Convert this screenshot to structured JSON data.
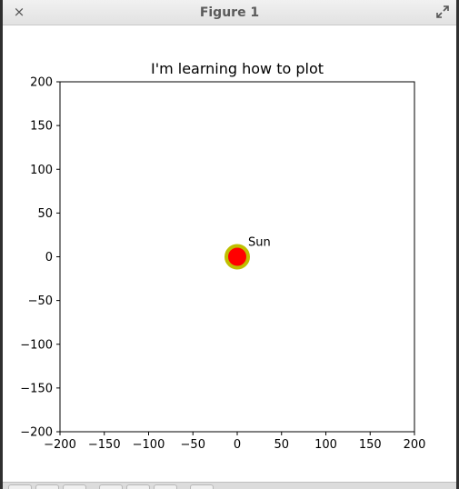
{
  "window": {
    "title": "Figure 1",
    "close_glyph": "×"
  },
  "toolbar": {
    "buttons": [
      "home-icon",
      "back-icon",
      "forward-icon",
      "pan-icon",
      "zoom-icon",
      "configure-icon",
      "save-icon"
    ]
  },
  "chart_data": {
    "type": "scatter",
    "title": "I'm learning how to plot",
    "xlabel": "",
    "ylabel": "",
    "xlim": [
      -200,
      200
    ],
    "ylim": [
      -200,
      200
    ],
    "xticks": [
      -200,
      -150,
      -100,
      -50,
      0,
      50,
      100,
      150,
      200
    ],
    "yticks": [
      -200,
      -150,
      -100,
      -50,
      0,
      50,
      100,
      150,
      200
    ],
    "xtick_labels": [
      "−200",
      "−150",
      "−100",
      "−50",
      "0",
      "50",
      "100",
      "150",
      "200"
    ],
    "ytick_labels": [
      "−200",
      "−150",
      "−100",
      "−50",
      "0",
      "50",
      "100",
      "150",
      "200"
    ],
    "grid": false,
    "points": [
      {
        "x": 0,
        "y": 0,
        "label": "Sun",
        "fill_color": "#ff0000",
        "edge_color": "#bfbf00"
      }
    ]
  },
  "colors": {
    "titlebar_bg": "#e8e8e8",
    "title_text": "#5b5b5b",
    "axes": "#000000"
  }
}
